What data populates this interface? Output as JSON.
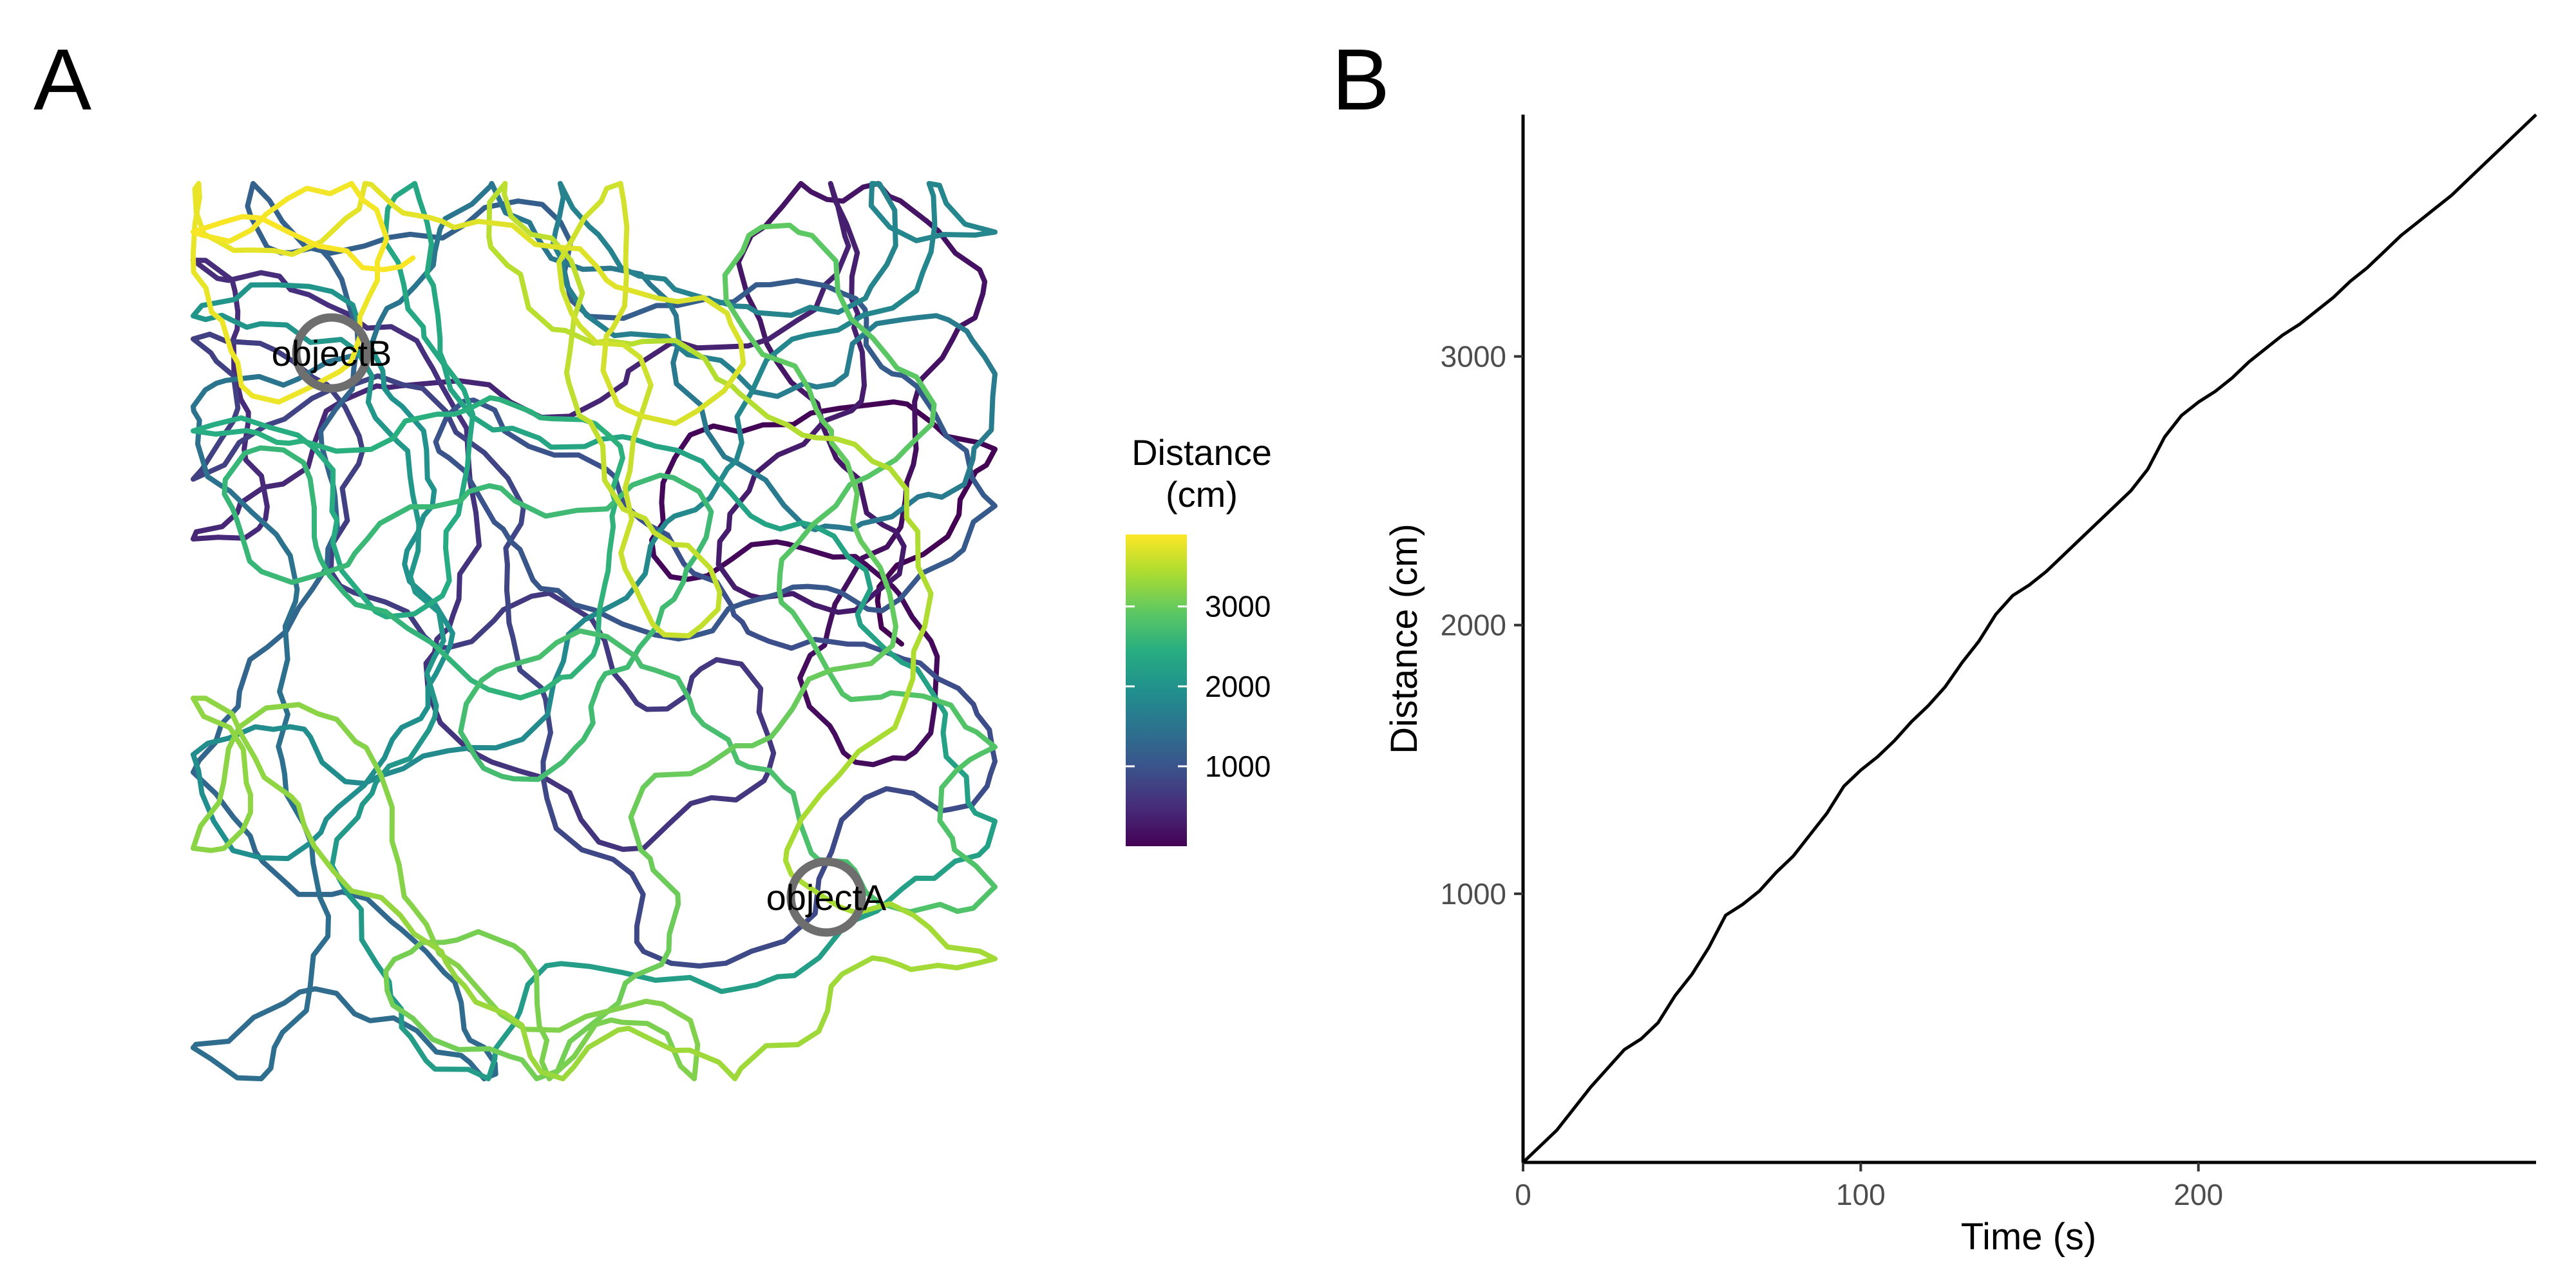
{
  "panels": {
    "a_tag": "A",
    "b_tag": "B"
  },
  "chart_data": [
    {
      "type": "line",
      "panel": "A",
      "description_of_marks": "path",
      "objects": [
        {
          "name": "objectB"
        },
        {
          "name": "objectA"
        }
      ],
      "colorbar": {
        "title_line1": "Distance",
        "title_line2": "(cm)",
        "ticks": [
          1000,
          2000,
          3000
        ],
        "tick_labels": [
          "1000",
          "2000",
          "3000"
        ],
        "range": [
          0,
          3900
        ],
        "palette": [
          "#440154",
          "#472c7a",
          "#3b528b",
          "#2c728e",
          "#21908d",
          "#27ad81",
          "#5cc863",
          "#aadc32",
          "#fde725"
        ]
      },
      "total_distance": 3900,
      "grid": false
    },
    {
      "type": "line",
      "panel": "B",
      "xlabel": "Time (s)",
      "ylabel": "Distance (cm)",
      "xlim": [
        0,
        300
      ],
      "ylim": [
        0,
        3900
      ],
      "xticks": [
        0,
        100,
        200
      ],
      "yticks": [
        1000,
        2000,
        3000
      ],
      "grid": false,
      "series": [
        {
          "color": "#000000",
          "x": [
            0,
            5,
            10,
            15,
            20,
            25,
            30,
            35,
            40,
            45,
            50,
            55,
            60,
            65,
            70,
            75,
            80,
            85,
            90,
            95,
            100,
            105,
            110,
            115,
            120,
            125,
            130,
            135,
            140,
            145,
            150,
            155,
            160,
            165,
            170,
            175,
            180,
            185,
            190,
            195,
            200,
            205,
            210,
            215,
            220,
            225,
            230,
            235,
            240,
            245,
            250,
            255,
            260,
            265,
            270,
            275,
            280,
            285,
            290,
            295,
            300
          ],
          "y": [
            0,
            60,
            120,
            200,
            280,
            350,
            420,
            460,
            520,
            620,
            700,
            800,
            920,
            960,
            1010,
            1080,
            1140,
            1220,
            1300,
            1400,
            1460,
            1510,
            1570,
            1640,
            1700,
            1770,
            1860,
            1940,
            2040,
            2110,
            2150,
            2200,
            2260,
            2320,
            2380,
            2440,
            2500,
            2580,
            2700,
            2780,
            2830,
            2870,
            2920,
            2980,
            3030,
            3080,
            3120,
            3170,
            3220,
            3280,
            3330,
            3390,
            3450,
            3500,
            3550,
            3600,
            3660,
            3720,
            3780,
            3840,
            3900
          ]
        }
      ]
    }
  ]
}
